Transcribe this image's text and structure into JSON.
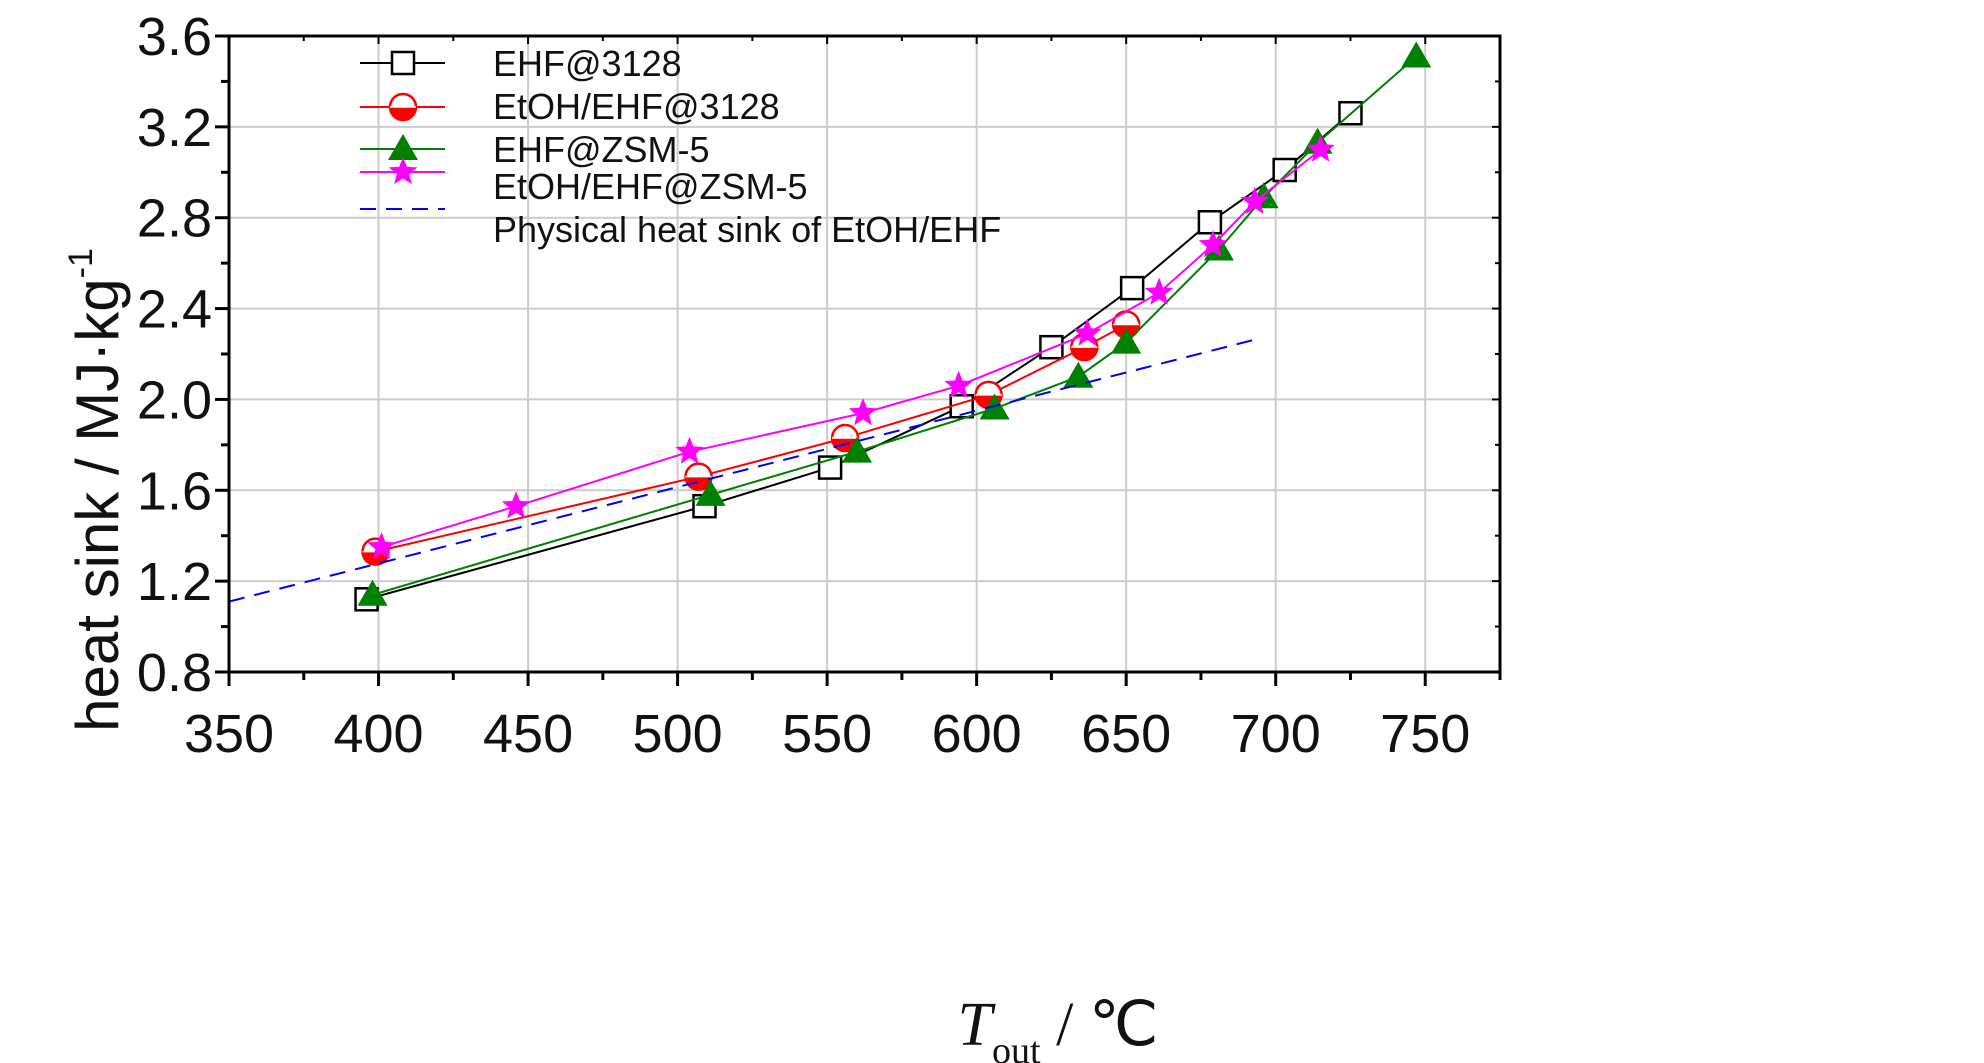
{
  "chart_data": {
    "type": "line",
    "xlabel": {
      "symbol": "T",
      "subscript": "out",
      "unit": " / ℃"
    },
    "ylabel": {
      "main": "heat sink / MJ·kg",
      "superscript": "-1"
    },
    "xlim": [
      350,
      775
    ],
    "ylim": [
      0.8,
      3.6
    ],
    "xticks": [
      350,
      400,
      450,
      500,
      550,
      600,
      650,
      700,
      750
    ],
    "xtick_labels": [
      "350",
      "400",
      "450",
      "500",
      "550",
      "600",
      "650",
      "700",
      "750"
    ],
    "yticks": [
      0.8,
      1.2,
      1.6,
      2.0,
      2.4,
      2.8,
      3.2,
      3.6
    ],
    "ytick_labels": [
      "0.8",
      "1.2",
      "1.6",
      "2.0",
      "2.4",
      "2.8",
      "3.2",
      "3.6"
    ],
    "grid": true,
    "legend_position": "top-left",
    "series": [
      {
        "name": "EHF@3128",
        "color": "#000000",
        "marker": "square",
        "x": [
          396,
          509,
          551,
          595,
          625,
          652,
          678,
          703,
          725
        ],
        "y": [
          1.12,
          1.53,
          1.7,
          1.97,
          2.23,
          2.49,
          2.78,
          3.01,
          3.26
        ]
      },
      {
        "name": "EtOH/EHF@3128",
        "color": "#ff0000",
        "marker": "circle-half",
        "x": [
          399,
          507,
          556,
          604,
          636,
          650
        ],
        "y": [
          1.33,
          1.66,
          1.83,
          2.02,
          2.23,
          2.33
        ]
      },
      {
        "name": "EHF@ZSM-5",
        "color": "#008000",
        "marker": "triangle",
        "x": [
          398,
          511,
          560,
          606,
          634,
          650,
          681,
          696,
          714,
          747
        ],
        "y": [
          1.14,
          1.58,
          1.77,
          1.96,
          2.1,
          2.25,
          2.66,
          2.89,
          3.13,
          3.51
        ]
      },
      {
        "name": "EtOH/EHF@ZSM-5",
        "color": "#ff00ff",
        "marker": "star",
        "x": [
          401,
          446,
          504,
          562,
          594,
          637,
          661,
          679,
          693,
          715
        ],
        "y": [
          1.35,
          1.53,
          1.77,
          1.94,
          2.06,
          2.29,
          2.47,
          2.68,
          2.87,
          3.1
        ]
      },
      {
        "name": "Physical heat sink of EtOH/EHF",
        "color": "#0000ff",
        "marker": "none",
        "dashed": true,
        "x": [
          350,
          695
        ],
        "y": [
          1.11,
          2.27
        ]
      }
    ]
  }
}
